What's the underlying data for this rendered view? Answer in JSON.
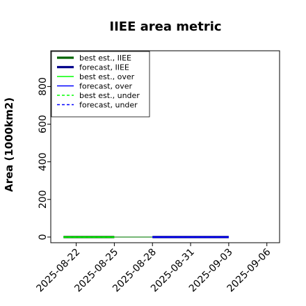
{
  "chart_data": {
    "type": "line",
    "title": "IIEE area metric",
    "xlabel": "",
    "ylabel": "Area (1000km2)",
    "ylim": [
      -30,
      990
    ],
    "xlim": [
      "2025-08-20",
      "2025-09-07"
    ],
    "yticks": [
      0,
      200,
      400,
      600,
      800
    ],
    "xticks": [
      "2025-08-22",
      "2025-08-25",
      "2025-08-28",
      "2025-08-31",
      "2025-09-03",
      "2025-09-06"
    ],
    "highlighted_xtick": "2025-08-28",
    "highlight_color": "#228B22",
    "grid": false,
    "legend_position": "upper-left",
    "series": [
      {
        "name": "best est., IIEE",
        "color": "#006400",
        "style": "solid",
        "width": "thick",
        "x": [
          "2025-08-21",
          "2025-08-25"
        ],
        "y": [
          0,
          0
        ]
      },
      {
        "name": "forecast, IIEE",
        "color": "#00008B",
        "style": "solid",
        "width": "thick",
        "x": [
          "2025-08-28",
          "2025-09-03"
        ],
        "y": [
          0,
          0
        ]
      },
      {
        "name": "best est., over",
        "color": "#00FF00",
        "style": "solid",
        "width": "thin",
        "x": [
          "2025-08-21",
          "2025-08-25"
        ],
        "y": [
          0,
          0
        ]
      },
      {
        "name": "forecast, over",
        "color": "#0000FF",
        "style": "solid",
        "width": "thin",
        "x": [
          "2025-08-28",
          "2025-09-03"
        ],
        "y": [
          0,
          0
        ]
      },
      {
        "name": "best est., under",
        "color": "#00FF00",
        "style": "dashed",
        "width": "thin",
        "x": [
          "2025-08-21",
          "2025-08-25"
        ],
        "y": [
          0,
          0
        ]
      },
      {
        "name": "forecast, under",
        "color": "#0000FF",
        "style": "dashed",
        "width": "thin",
        "x": [
          "2025-08-28",
          "2025-09-03"
        ],
        "y": [
          0,
          0
        ]
      }
    ],
    "connector": {
      "color": "#228B22",
      "x": [
        "2025-08-25",
        "2025-08-28"
      ],
      "y": [
        0,
        0
      ]
    }
  }
}
